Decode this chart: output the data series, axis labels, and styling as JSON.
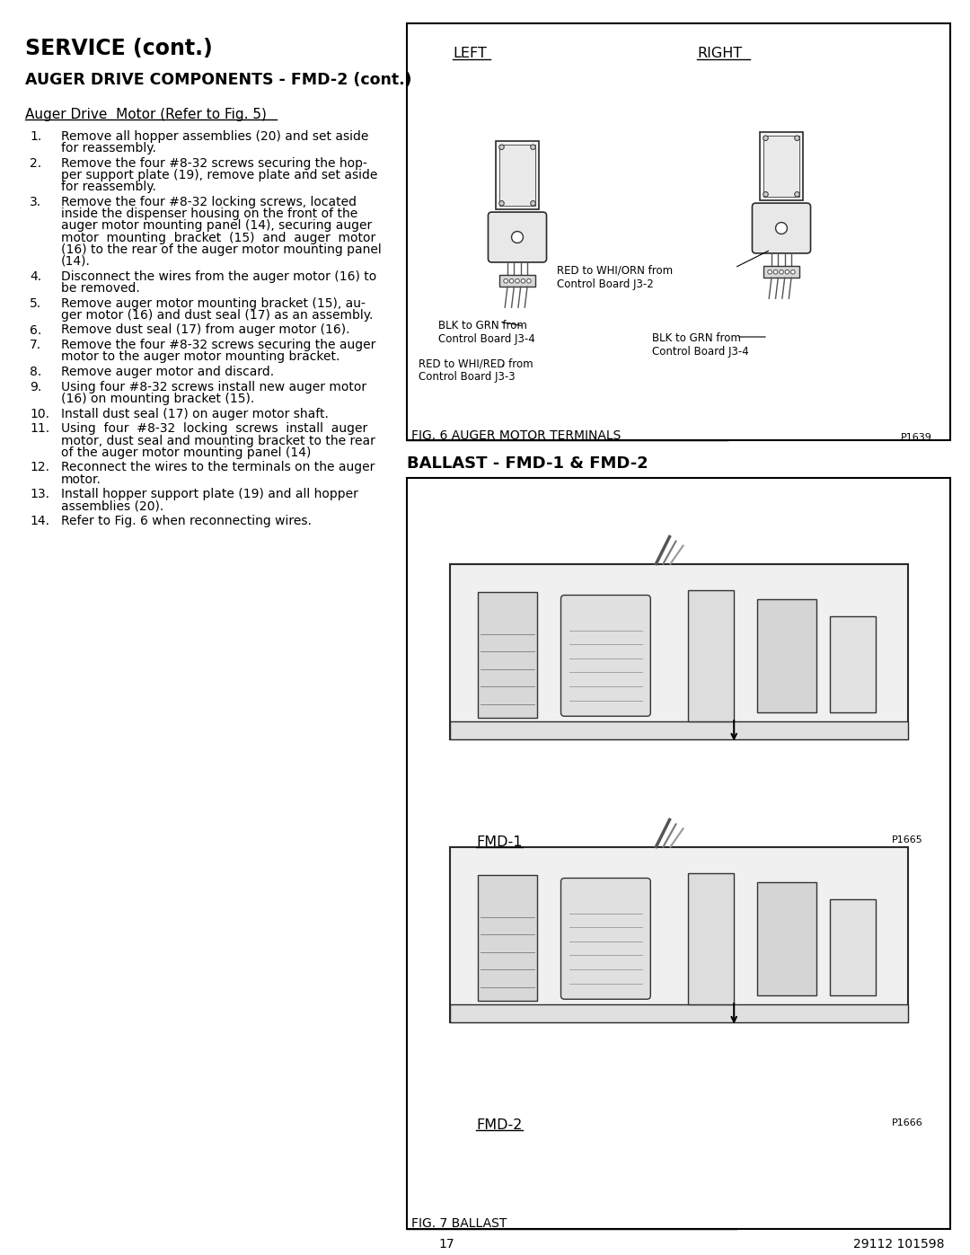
{
  "page_title": "SERVICE (cont.)",
  "section_title": "AUGER DRIVE COMPONENTS - FMD-2 (cont.)",
  "subsection_title": "Auger Drive  Motor (Refer to Fig. 5)",
  "numbered_items": [
    "Remove all hopper assemblies (20) and set aside\nfor reassembly.",
    "Remove the four #8-32 screws securing the hop-\nper support plate (19), remove plate and set aside\nfor reassembly.",
    "Remove the four #8-32 locking screws, located\ninside the dispenser housing on the front of the\nauger motor mounting panel (14), securing auger\nmotor  mounting  bracket  (15)  and  auger  motor\n(16) to the rear of the auger motor mounting panel\n(14).",
    "Disconnect the wires from the auger motor (16) to\nbe removed.",
    "Remove auger motor mounting bracket (15), au-\nger motor (16) and dust seal (17) as an assembly.",
    "Remove dust seal (17) from auger motor (16).",
    "Remove the four #8-32 screws securing the auger\nmotor to the auger motor mounting bracket.",
    "Remove auger motor and discard.",
    "Using four #8-32 screws install new auger motor\n(16) on mounting bracket (15).",
    "Install dust seal (17) on auger motor shaft.",
    "Using  four  #8-32  locking  screws  install  auger\nmotor, dust seal and mounting bracket to the rear\nof the auger motor mounting panel (14)",
    "Reconnect the wires to the terminals on the auger\nmotor.",
    "Install hopper support plate (19) and all hopper\nassemblies (20).",
    "Refer to Fig. 6 when reconnecting wires."
  ],
  "fig6_title": "FIG. 6 AUGER MOTOR TERMINALS",
  "fig6_code": "P1639",
  "fig6_left": "LEFT",
  "fig6_right": "RIGHT",
  "fig6_label1": "RED to WHI/ORN from\nControl Board J3-2",
  "fig6_label2": "BLK to GRN from\nControl Board J3-4",
  "fig6_label3": "RED to WHI/RED from\nControl Board J3-3",
  "fig6_label4": "BLK to GRN from\nControl Board J3-4",
  "ballast_title": "BALLAST - FMD-1 & FMD-2",
  "fmd1_label": "FMD-1",
  "fmd2_label": "FMD-2",
  "fig7_title": "FIG. 7 BALLAST",
  "fig7_code_1": "P1665",
  "fig7_code_2": "P1666",
  "page_number": "17",
  "doc_number": "29112 101598",
  "background": "#ffffff",
  "text_color": "#000000"
}
